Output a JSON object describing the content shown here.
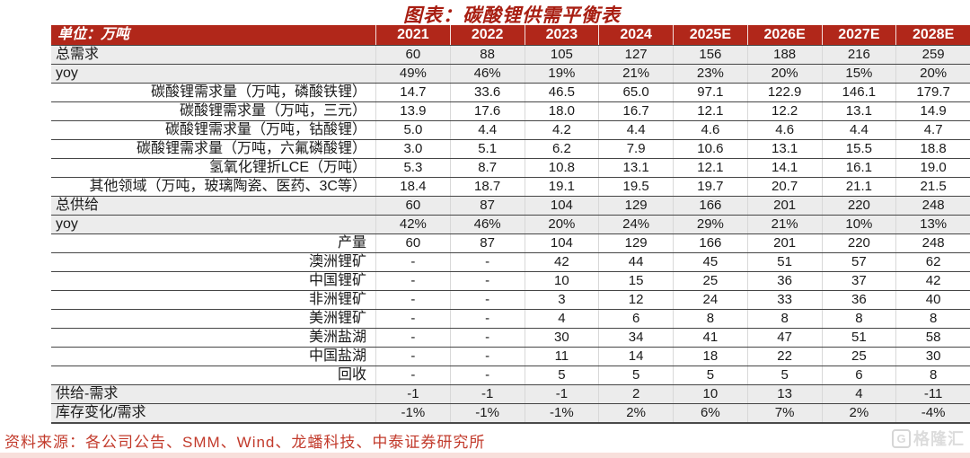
{
  "title": {
    "text": "图表：碳酸锂供需平衡表"
  },
  "table": {
    "unit_header": "单位：万吨",
    "year_columns": [
      "2021",
      "2022",
      "2023",
      "2024",
      "2025E",
      "2026E",
      "2027E",
      "2028E"
    ],
    "rows": [
      {
        "label": "总需求",
        "band": true,
        "label_align": "left",
        "values": [
          "60",
          "88",
          "105",
          "127",
          "156",
          "188",
          "216",
          "259"
        ]
      },
      {
        "label": "yoy",
        "band": true,
        "label_align": "left",
        "values": [
          "49%",
          "46%",
          "19%",
          "21%",
          "23%",
          "20%",
          "15%",
          "20%"
        ]
      },
      {
        "label": "碳酸锂需求量（万吨，磷酸铁锂）",
        "band": false,
        "label_align": "right",
        "values": [
          "14.7",
          "33.6",
          "46.5",
          "65.0",
          "97.1",
          "122.9",
          "146.1",
          "179.7"
        ]
      },
      {
        "label": "碳酸锂需求量（万吨，三元）",
        "band": false,
        "label_align": "right",
        "values": [
          "13.9",
          "17.6",
          "18.0",
          "16.7",
          "12.1",
          "12.2",
          "13.1",
          "14.9"
        ]
      },
      {
        "label": "碳酸锂需求量（万吨，钴酸锂）",
        "band": false,
        "label_align": "right",
        "values": [
          "5.0",
          "4.4",
          "4.2",
          "4.4",
          "4.6",
          "4.6",
          "4.4",
          "4.7"
        ]
      },
      {
        "label": "碳酸锂需求量（万吨，六氟磷酸锂）",
        "band": false,
        "label_align": "right",
        "values": [
          "3.0",
          "5.1",
          "6.2",
          "7.9",
          "10.6",
          "13.1",
          "15.5",
          "18.8"
        ]
      },
      {
        "label": "氢氧化锂折LCE（万吨）",
        "band": false,
        "label_align": "right",
        "values": [
          "5.3",
          "8.7",
          "10.8",
          "13.1",
          "12.1",
          "14.1",
          "16.1",
          "19.0"
        ]
      },
      {
        "label": "其他领域（万吨，玻璃陶瓷、医药、3C等）",
        "band": false,
        "label_align": "right",
        "values": [
          "18.4",
          "18.7",
          "19.1",
          "19.5",
          "19.7",
          "20.7",
          "21.1",
          "21.5"
        ]
      },
      {
        "label": "总供给",
        "band": true,
        "label_align": "left",
        "values": [
          "60",
          "87",
          "104",
          "129",
          "166",
          "201",
          "220",
          "248"
        ]
      },
      {
        "label": "yoy",
        "band": true,
        "label_align": "left",
        "values": [
          "42%",
          "46%",
          "20%",
          "24%",
          "29%",
          "21%",
          "10%",
          "13%"
        ]
      },
      {
        "label": "产量",
        "band": false,
        "label_align": "right",
        "values": [
          "60",
          "87",
          "104",
          "129",
          "166",
          "201",
          "220",
          "248"
        ]
      },
      {
        "label": "澳洲锂矿",
        "band": false,
        "label_align": "right",
        "values": [
          "-",
          "-",
          "42",
          "44",
          "45",
          "51",
          "57",
          "62"
        ]
      },
      {
        "label": "中国锂矿",
        "band": false,
        "label_align": "right",
        "values": [
          "-",
          "-",
          "10",
          "15",
          "25",
          "36",
          "37",
          "42"
        ]
      },
      {
        "label": "非洲锂矿",
        "band": false,
        "label_align": "right",
        "values": [
          "-",
          "-",
          "3",
          "12",
          "24",
          "33",
          "36",
          "40"
        ]
      },
      {
        "label": "美洲锂矿",
        "band": false,
        "label_align": "right",
        "values": [
          "-",
          "-",
          "4",
          "6",
          "8",
          "8",
          "8",
          "8"
        ]
      },
      {
        "label": "美洲盐湖",
        "band": false,
        "label_align": "right",
        "values": [
          "-",
          "-",
          "30",
          "34",
          "41",
          "47",
          "51",
          "58"
        ]
      },
      {
        "label": "中国盐湖",
        "band": false,
        "label_align": "right",
        "values": [
          "-",
          "-",
          "11",
          "14",
          "18",
          "22",
          "25",
          "30"
        ]
      },
      {
        "label": "回收",
        "band": false,
        "label_align": "right",
        "values": [
          "-",
          "-",
          "5",
          "5",
          "5",
          "5",
          "6",
          "8"
        ]
      },
      {
        "label": "供给-需求",
        "band": true,
        "label_align": "left",
        "values": [
          "-1",
          "-1",
          "-1",
          "2",
          "10",
          "13",
          "4",
          "-11"
        ]
      },
      {
        "label": "库存变化/需求",
        "band": true,
        "label_align": "left",
        "values": [
          "-1%",
          "-1%",
          "-1%",
          "2%",
          "6%",
          "7%",
          "2%",
          "-4%"
        ]
      }
    ]
  },
  "footer": {
    "source": "资料来源：各公司公告、SMM、Wind、龙蟠科技、中泰证券研究所"
  },
  "watermark": {
    "icon_letter": "G",
    "text": "格隆汇"
  },
  "colors": {
    "header_bg": "#B1271A",
    "band_bg": "#ECECEC",
    "title": "#A81E12",
    "source_text": "#C23A2B",
    "bottom_strip": "#F8DFDB"
  }
}
